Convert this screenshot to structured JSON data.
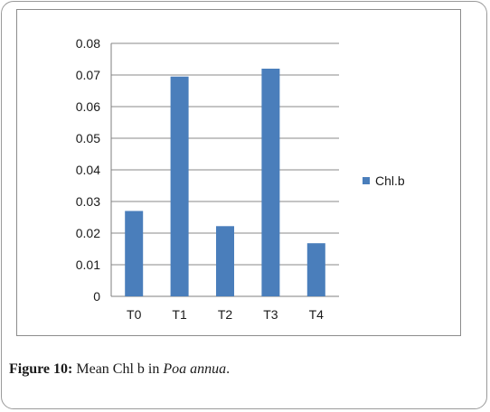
{
  "caption": {
    "label": "Figure 10:",
    "text_before": "Mean Chl b in ",
    "species": "Poa annua",
    "text_after": "."
  },
  "chart_data": {
    "type": "bar",
    "categories": [
      "T0",
      "T1",
      "T2",
      "T3",
      "T4"
    ],
    "series": [
      {
        "name": "Chl.b",
        "values": [
          0.027,
          0.0695,
          0.0222,
          0.072,
          0.0168
        ],
        "color": "#4a7ebb"
      }
    ],
    "ylim": [
      0,
      0.08
    ],
    "yticks": [
      "0",
      "0.01",
      "0.02",
      "0.03",
      "0.04",
      "0.05",
      "0.06",
      "0.07",
      "0.08"
    ],
    "gridlines": true,
    "legend_position": "right",
    "title": "",
    "xlabel": "",
    "ylabel": ""
  }
}
